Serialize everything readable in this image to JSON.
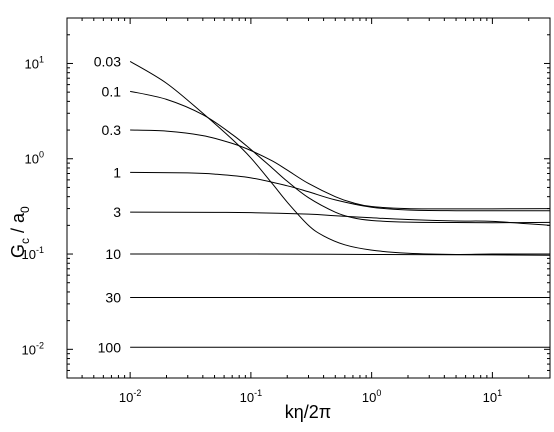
{
  "chart_data": {
    "type": "line",
    "title": "",
    "xlabel": "kη/2π",
    "ylabel": {
      "main": "G",
      "sub": "c",
      "mid": " / a",
      "sub2": "0"
    },
    "xscale": "log",
    "yscale": "log",
    "xlim": [
      0.003,
      30
    ],
    "ylim": [
      0.005,
      30
    ],
    "grid": false,
    "legend": "none",
    "x_ticks": [
      {
        "value": 0.01,
        "base": "10",
        "exp": "-2"
      },
      {
        "value": 0.1,
        "base": "10",
        "exp": "-1"
      },
      {
        "value": 1,
        "base": "10",
        "exp": "0"
      },
      {
        "value": 10,
        "base": "10",
        "exp": "1"
      }
    ],
    "y_ticks": [
      {
        "value": 0.01,
        "base": "10",
        "exp": "-2"
      },
      {
        "value": 0.1,
        "base": "10",
        "exp": "-1"
      },
      {
        "value": 1,
        "base": "10",
        "exp": "0"
      },
      {
        "value": 10,
        "base": "10",
        "exp": "1"
      }
    ],
    "series": [
      {
        "label": "0.03",
        "x": [
          0.01,
          0.02,
          0.04,
          0.07,
          0.1,
          0.15,
          0.2,
          0.3,
          0.4,
          0.6,
          1,
          2,
          5,
          10,
          30
        ],
        "y": [
          10.5,
          6.2,
          3.0,
          1.6,
          1.02,
          0.55,
          0.35,
          0.2,
          0.155,
          0.125,
          0.11,
          0.102,
          0.099,
          0.1,
          0.1
        ]
      },
      {
        "label": "0.1",
        "x": [
          0.01,
          0.02,
          0.04,
          0.07,
          0.1,
          0.15,
          0.2,
          0.3,
          0.5,
          0.7,
          1,
          2,
          5,
          10,
          30
        ],
        "y": [
          5.1,
          4.2,
          2.9,
          1.8,
          1.25,
          0.8,
          0.58,
          0.39,
          0.275,
          0.24,
          0.225,
          0.216,
          0.214,
          0.213,
          0.215
        ]
      },
      {
        "label": "0.3",
        "x": [
          0.01,
          0.02,
          0.04,
          0.07,
          0.1,
          0.15,
          0.2,
          0.3,
          0.5,
          0.7,
          1,
          2,
          5,
          10,
          30
        ],
        "y": [
          2.0,
          1.95,
          1.75,
          1.45,
          1.22,
          0.95,
          0.76,
          0.55,
          0.4,
          0.345,
          0.315,
          0.3,
          0.298,
          0.298,
          0.3
        ]
      },
      {
        "label": "1",
        "x": [
          0.01,
          0.03,
          0.05,
          0.1,
          0.2,
          0.3,
          0.5,
          1,
          2,
          5,
          10,
          30
        ],
        "y": [
          0.72,
          0.71,
          0.69,
          0.63,
          0.52,
          0.45,
          0.37,
          0.31,
          0.29,
          0.285,
          0.285,
          0.285
        ]
      },
      {
        "label": "3",
        "x": [
          0.01,
          0.05,
          0.1,
          0.3,
          0.5,
          1,
          2,
          5,
          10,
          30
        ],
        "y": [
          0.275,
          0.274,
          0.272,
          0.262,
          0.252,
          0.24,
          0.23,
          0.222,
          0.22,
          0.2
        ]
      },
      {
        "label": "10",
        "x": [
          0.01,
          0.1,
          1,
          10,
          30
        ],
        "y": [
          0.1,
          0.1,
          0.099,
          0.098,
          0.097
        ]
      },
      {
        "label": "30",
        "x": [
          0.01,
          0.1,
          1,
          10,
          30
        ],
        "y": [
          0.035,
          0.035,
          0.035,
          0.035,
          0.035
        ]
      },
      {
        "label": "100",
        "x": [
          0.01,
          0.1,
          1,
          10,
          30
        ],
        "y": [
          0.0105,
          0.0105,
          0.0105,
          0.0105,
          0.0105
        ]
      }
    ]
  }
}
